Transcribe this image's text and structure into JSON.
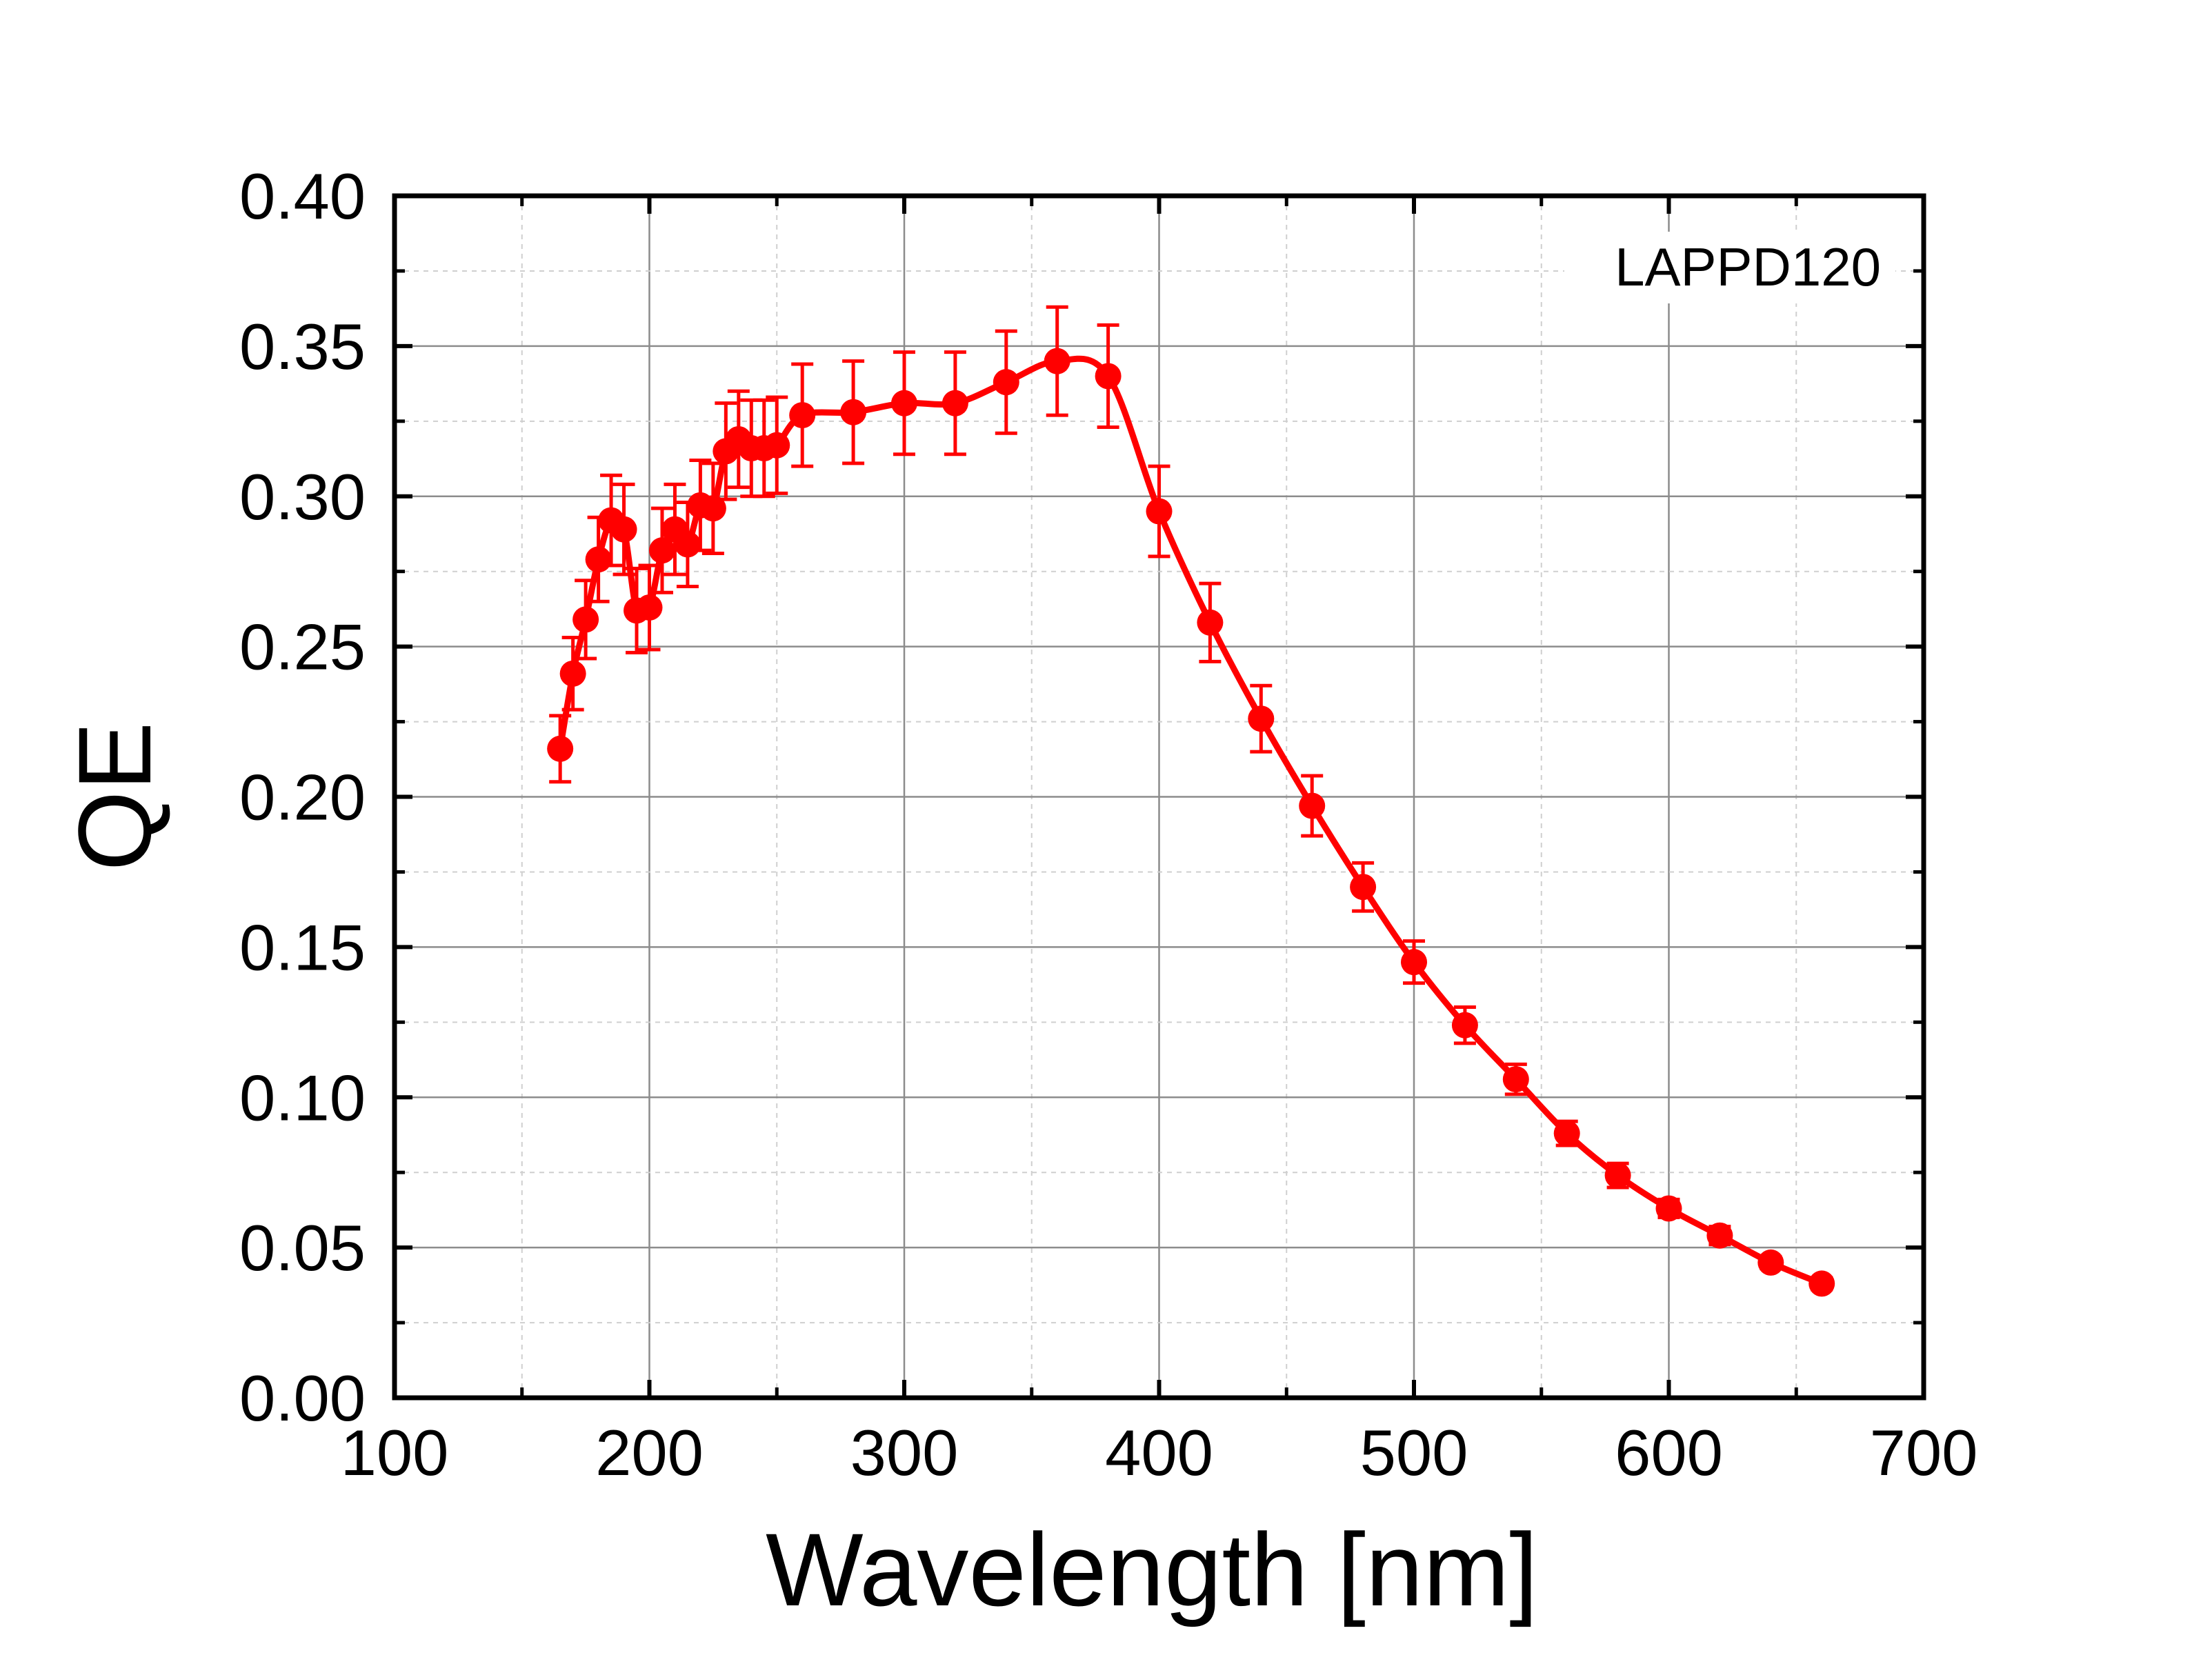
{
  "chart_data": {
    "type": "line",
    "title": "",
    "xlabel": "Wavelength [nm]",
    "ylabel": "QE",
    "xlim": [
      100,
      700
    ],
    "ylim": [
      0.0,
      0.4
    ],
    "x_ticks": [
      "100",
      "200",
      "300",
      "400",
      "500",
      "600",
      "700"
    ],
    "y_ticks": [
      "0.00",
      "0.05",
      "0.10",
      "0.15",
      "0.20",
      "0.25",
      "0.30",
      "0.35",
      "0.40"
    ],
    "grid": true,
    "legend_text": "LAPPD120",
    "legend_position": "top-right",
    "series": [
      {
        "name": "LAPPD120",
        "color": "#ff0000",
        "markers": "circle",
        "x": [
          165,
          170,
          175,
          180,
          185,
          190,
          195,
          200,
          205,
          210,
          215,
          220,
          225,
          230,
          235,
          240,
          245,
          250,
          260,
          280,
          300,
          320,
          340,
          360,
          380,
          400,
          420,
          440,
          460,
          480,
          500,
          520,
          540,
          560,
          580,
          600,
          620,
          640,
          660
        ],
        "y": [
          0.216,
          0.241,
          0.259,
          0.279,
          0.292,
          0.289,
          0.262,
          0.263,
          0.282,
          0.289,
          0.284,
          0.297,
          0.296,
          0.315,
          0.319,
          0.316,
          0.316,
          0.317,
          0.327,
          0.328,
          0.331,
          0.331,
          0.338,
          0.345,
          0.34,
          0.295,
          0.258,
          0.226,
          0.197,
          0.17,
          0.145,
          0.124,
          0.106,
          0.088,
          0.074,
          0.063,
          0.054,
          0.045,
          0.038
        ],
        "err": [
          0.011,
          0.012,
          0.013,
          0.014,
          0.015,
          0.015,
          0.014,
          0.014,
          0.014,
          0.015,
          0.014,
          0.015,
          0.015,
          0.016,
          0.016,
          0.016,
          0.016,
          0.016,
          0.017,
          0.017,
          0.017,
          0.017,
          0.017,
          0.018,
          0.017,
          0.015,
          0.013,
          0.011,
          0.01,
          0.008,
          0.007,
          0.006,
          0.005,
          0.004,
          0.004,
          0.003,
          0.003,
          0.002,
          0.002
        ]
      }
    ]
  }
}
